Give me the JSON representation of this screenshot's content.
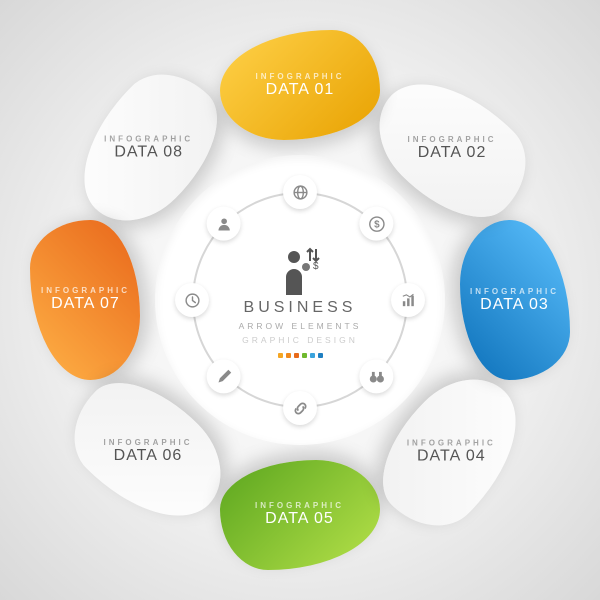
{
  "type": "infographic",
  "layout": "radial-8-petal",
  "background": {
    "inner": "#ffffff",
    "outer": "#d8d8d8"
  },
  "ring": {
    "outer_radius": 145,
    "inner_radius": 108,
    "stroke": "#d6d6d6"
  },
  "center": {
    "title": "BUSINESS",
    "subtitle": "ARROW ELEMENTS",
    "tagline": "GRAPHIC DESIGN",
    "title_color": "#666666",
    "subtitle_color": "#aaaaaa",
    "tagline_color": "#cccccc",
    "accent_dots": [
      "#f5a623",
      "#f08a1d",
      "#e86a1a",
      "#6fb92e",
      "#3aa3dd",
      "#1f7fc1"
    ]
  },
  "petals": [
    {
      "idx": 0,
      "angle": 0,
      "sup": "INFOGRAPHIC",
      "label": "DATA 01",
      "kind": "colored",
      "fill_a": "#ffd24a",
      "fill_b": "#e8a100"
    },
    {
      "idx": 1,
      "angle": 45,
      "sup": "INFOGRAPHIC",
      "label": "DATA 02",
      "kind": "white",
      "fill_a": "#ffffff",
      "fill_b": "#f0f0f0"
    },
    {
      "idx": 2,
      "angle": 90,
      "sup": "INFOGRAPHIC",
      "label": "DATA 03",
      "kind": "colored",
      "fill_a": "#5ec2ff",
      "fill_b": "#0b6fb8"
    },
    {
      "idx": 3,
      "angle": 135,
      "sup": "INFOGRAPHIC",
      "label": "DATA 04",
      "kind": "white",
      "fill_a": "#ffffff",
      "fill_b": "#f0f0f0"
    },
    {
      "idx": 4,
      "angle": 180,
      "sup": "INFOGRAPHIC",
      "label": "DATA 05",
      "kind": "colored",
      "fill_a": "#b7e24a",
      "fill_b": "#5aa51e"
    },
    {
      "idx": 5,
      "angle": 225,
      "sup": "INFOGRAPHIC",
      "label": "DATA 06",
      "kind": "white",
      "fill_a": "#ffffff",
      "fill_b": "#f0f0f0"
    },
    {
      "idx": 6,
      "angle": 270,
      "sup": "INFOGRAPHIC",
      "label": "DATA 07",
      "kind": "colored",
      "fill_a": "#ffb347",
      "fill_b": "#e8661a"
    },
    {
      "idx": 7,
      "angle": 315,
      "sup": "INFOGRAPHIC",
      "label": "DATA 08",
      "kind": "white",
      "fill_a": "#ffffff",
      "fill_b": "#f0f0f0"
    }
  ],
  "icons": [
    {
      "angle": 0,
      "name": "globe-icon"
    },
    {
      "angle": 45,
      "name": "dollar-icon"
    },
    {
      "angle": 90,
      "name": "chart-icon"
    },
    {
      "angle": 135,
      "name": "binoculars-icon"
    },
    {
      "angle": 180,
      "name": "link-icon"
    },
    {
      "angle": 225,
      "name": "pencil-icon"
    },
    {
      "angle": 270,
      "name": "clock-icon"
    },
    {
      "angle": 315,
      "name": "person-icon"
    }
  ],
  "orbit_radius": 108,
  "icon_color": "#8a8a8a"
}
